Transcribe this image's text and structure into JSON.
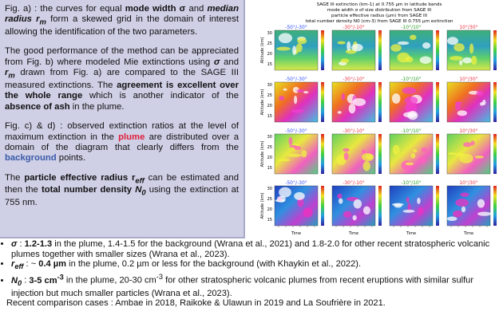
{
  "left_box": {
    "p1": [
      "Fig. a) : the curves for equal ",
      "mode width σ",
      " and ",
      "median radius r",
      "m",
      " form a skewed grid in the domain of interest allowing the identification of the two parameters."
    ],
    "p2": [
      "The good performance of the method can be appreciated from Fig. b) where modeled Mie extinctions using ",
      "σ",
      " and ",
      "r",
      "m",
      " drawn from Fig. a) are compared to the SAGE III measured extinctions. The ",
      "agreement is excellent over the whole range",
      " which is another indicator of the ",
      "absence of ash",
      " in the plume."
    ],
    "p3": [
      "Fig. c) & d) : observed extinction ratios at the level of maximum extinction in the ",
      "plume",
      " are distributed over a domain of the diagram that clearly differs from the ",
      "background",
      " points."
    ],
    "p4": [
      "The ",
      "particle effective radius r",
      "eff",
      " can be estimated and then the ",
      "total number density ",
      "N",
      "0",
      " using the extinction at 755 nm."
    ]
  },
  "figure": {
    "title": [
      "SAGE III extinction (km-1) at 0.755 µm in latitude bands",
      "mode width σ of size distribution from SAGE III",
      "particle effective radius (µm) from SAGE III",
      "total number density N0 (cm-3) from SAGE III 0.755 µm extinction"
    ],
    "bands": [
      "-50°/-30°",
      "-30°/-10°",
      "-10°/10°",
      "10°/30°"
    ],
    "y_ticks": [
      "30",
      "25",
      "20",
      "15"
    ],
    "y_label": "Altitude (km)",
    "x_label": "Time"
  },
  "bullets": [
    [
      "σ",
      " : ",
      "1.2-1.3",
      " in the plume, 1.4-1.5 for the background (Wrana et al., 2021) and 1.8-2.0 for other recent stratospheric volcanic plumes together with smaller sizes (Wrana et al., 2023)."
    ],
    [
      "r",
      "eff",
      " : ~ ",
      "0.4 µm",
      " in the plume, 0.2 µm or less for the background (with Khaykin et al., 2022)."
    ],
    [
      "N",
      "0",
      " : ",
      "3-5 cm",
      "-3",
      " in the plume, 20-30 cm",
      "-3",
      " for other stratospheric volcanic plumes from recent eruptions with similar sulfur injection but much smaller particles (Wrana et al., 2023)."
    ]
  ],
  "footer": "Recent comparison cases : Ambae in 2018, Raikoke & Ulawun in 2019 and La Soufrière in 2021."
}
